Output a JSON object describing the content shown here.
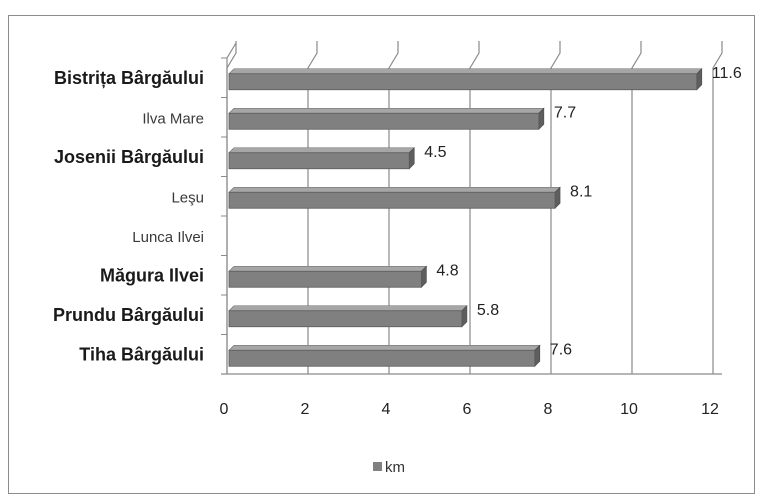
{
  "chart_data": {
    "type": "bar",
    "orientation": "horizontal",
    "style": "3d",
    "categories": [
      {
        "label": "Bistrița Bârgăului",
        "bold": true
      },
      {
        "label": "Ilva Mare",
        "bold": false
      },
      {
        "label": "Josenii Bârgăului",
        "bold": true
      },
      {
        "label": "Leşu",
        "bold": false
      },
      {
        "label": "Lunca Ilvei",
        "bold": false
      },
      {
        "label": "Măgura Ilvei",
        "bold": true
      },
      {
        "label": "Prundu Bârgăului",
        "bold": true
      },
      {
        "label": "Tiha Bârgăului",
        "bold": true
      }
    ],
    "series": [
      {
        "name": "km",
        "values": [
          11.6,
          7.7,
          4.5,
          8.1,
          null,
          4.8,
          5.8,
          7.6
        ],
        "color": "#808080"
      }
    ],
    "data_labels": [
      "11.6",
      "7.7",
      "4.5",
      "8.1",
      "",
      "4.8",
      "5.8",
      "7.6"
    ],
    "xlim": [
      0,
      12
    ],
    "x_ticks": [
      0,
      2,
      4,
      6,
      8,
      10,
      12
    ],
    "grid": true,
    "legend_position": "bottom",
    "title": "",
    "xlabel": "",
    "ylabel": ""
  }
}
